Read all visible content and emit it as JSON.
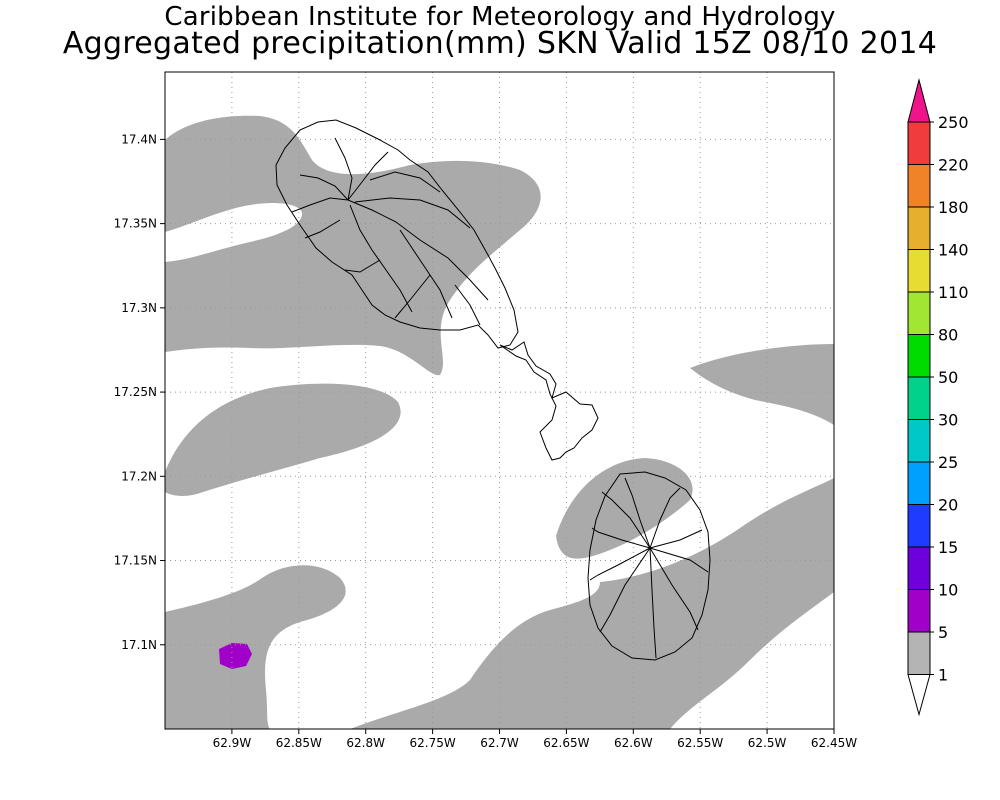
{
  "header": {
    "line1": "Caribbean Institute for Meteorology and Hydrology",
    "line2": "Aggregated precipitation(mm) SKN Valid 15Z 08/10 2014"
  },
  "map": {
    "lon_range": [
      -62.95,
      -62.45
    ],
    "lat_range": [
      17.05,
      17.44
    ],
    "lon_ticks": [
      {
        "value": -62.9,
        "label": "62.9W"
      },
      {
        "value": -62.85,
        "label": "62.85W"
      },
      {
        "value": -62.8,
        "label": "62.8W"
      },
      {
        "value": -62.75,
        "label": "62.75W"
      },
      {
        "value": -62.7,
        "label": "62.7W"
      },
      {
        "value": -62.65,
        "label": "62.65W"
      },
      {
        "value": -62.6,
        "label": "62.6W"
      },
      {
        "value": -62.55,
        "label": "62.55W"
      },
      {
        "value": -62.5,
        "label": "62.5W"
      },
      {
        "value": -62.45,
        "label": "62.45W"
      }
    ],
    "lat_ticks": [
      {
        "value": 17.4,
        "label": "17.4N"
      },
      {
        "value": 17.35,
        "label": "17.35N"
      },
      {
        "value": 17.3,
        "label": "17.3N"
      },
      {
        "value": 17.25,
        "label": "17.25N"
      },
      {
        "value": 17.2,
        "label": "17.2N"
      },
      {
        "value": 17.15,
        "label": "17.15N"
      },
      {
        "value": 17.1,
        "label": "17.1N"
      }
    ],
    "grid": "dotted",
    "precip_shade_color": "#aaaaaa",
    "max_cell_color": "#a000c8"
  },
  "colorbar": {
    "labels": [
      "250",
      "220",
      "180",
      "140",
      "110",
      "80",
      "50",
      "30",
      "25",
      "20",
      "15",
      "10",
      "5",
      "1"
    ],
    "colors": [
      "#f0148c",
      "#f03c3c",
      "#f08228",
      "#e6af2d",
      "#e6dc32",
      "#a0e632",
      "#00dc00",
      "#00d28c",
      "#00c8c8",
      "#00a0ff",
      "#1e3cff",
      "#6e00dc",
      "#a000c8",
      "#b4b4b4",
      "#ffffff"
    ]
  }
}
